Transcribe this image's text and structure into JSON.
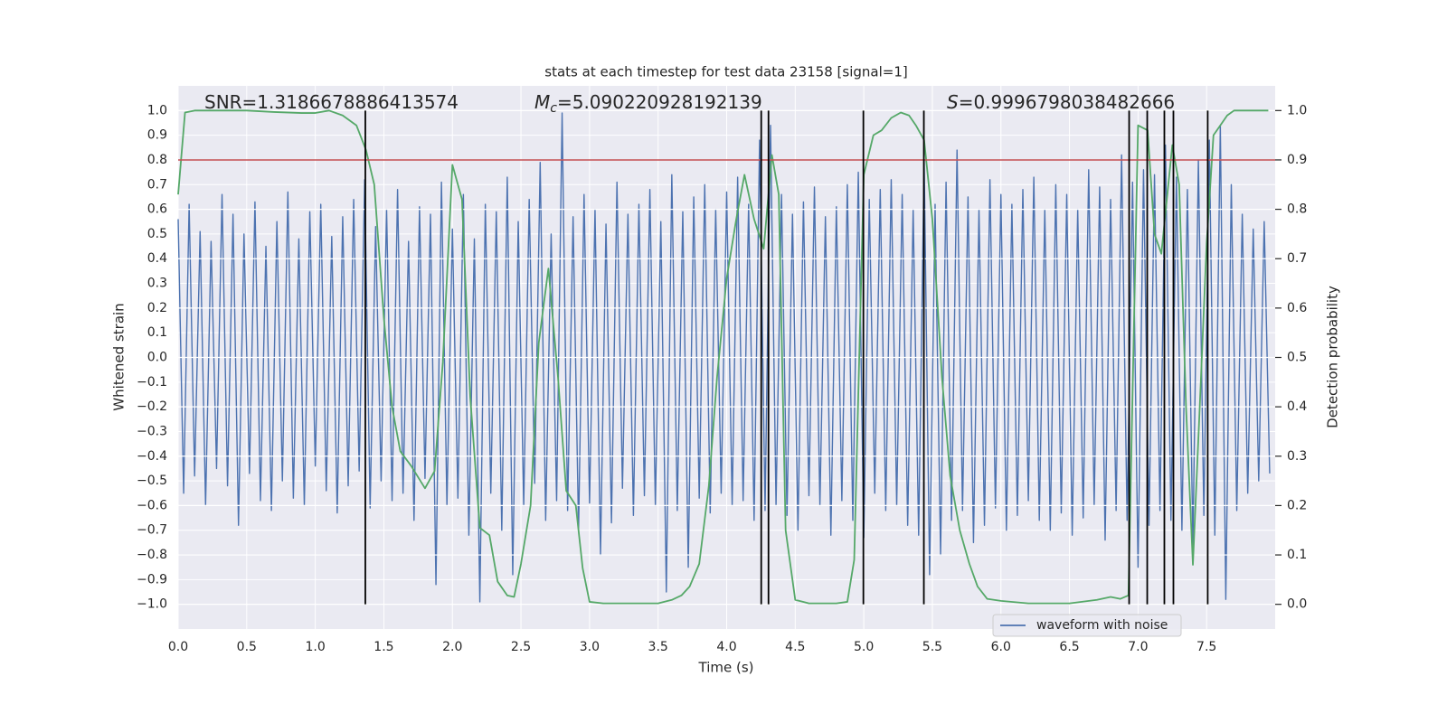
{
  "chart_data": {
    "type": "line",
    "title": "stats at each timestep for test data 23158 [signal=1]",
    "xlabel": "Time (s)",
    "ylabel": "Whitened strain",
    "y2label": "Detection probability",
    "xlim": [
      0,
      8
    ],
    "ylim": [
      -1.1,
      1.1
    ],
    "y2lim": [
      -0.05,
      1.05
    ],
    "xticks": [
      {
        "value": 0,
        "label": "0.0"
      },
      0.5,
      {
        "value": 1,
        "label": "1.0"
      },
      1.5,
      {
        "value": 2,
        "label": "2.0"
      },
      2.5,
      {
        "value": 3,
        "label": "3.0"
      },
      3.5,
      {
        "value": 4,
        "label": "4.0"
      },
      4.5,
      {
        "value": 5,
        "label": "5.0"
      },
      5.5,
      {
        "value": 6,
        "label": "6.0"
      },
      6.5,
      {
        "value": 7,
        "label": "7.0"
      },
      7.5
    ],
    "yticks": [
      {
        "value": -1,
        "label": "−1.0"
      },
      {
        "value": -0.9,
        "label": "−0.9"
      },
      {
        "value": -0.8,
        "label": "−0.8"
      },
      {
        "value": -0.7,
        "label": "−0.7"
      },
      {
        "value": -0.6,
        "label": "−0.6"
      },
      {
        "value": -0.5,
        "label": "−0.5"
      },
      {
        "value": -0.4,
        "label": "−0.4"
      },
      {
        "value": -0.3,
        "label": "−0.3"
      },
      {
        "value": -0.2,
        "label": "−0.2"
      },
      {
        "value": -0.1,
        "label": "−0.1"
      },
      {
        "value": 0,
        "label": "0.0"
      },
      0.1,
      0.2,
      0.3,
      0.4,
      0.5,
      0.6,
      0.7,
      0.8,
      0.9,
      {
        "value": 1,
        "label": "1.0"
      }
    ],
    "y2ticks": [
      {
        "value": 0,
        "label": "0.0"
      },
      0.1,
      0.2,
      0.3,
      0.4,
      0.5,
      0.6,
      0.7,
      0.8,
      0.9,
      {
        "value": 1,
        "label": "1.0"
      }
    ],
    "grid": true,
    "legend": "lower right",
    "series": [
      {
        "name": "waveform with noise",
        "color": "#4c72b0",
        "x": [
          0,
          0.04,
          0.08,
          0.12,
          0.16,
          0.2,
          0.24,
          0.28,
          0.32,
          0.36,
          0.4,
          0.44,
          0.48,
          0.52,
          0.56,
          0.6,
          0.64,
          0.68,
          0.72,
          0.76,
          0.8,
          0.84,
          0.88,
          0.92,
          0.96,
          1,
          1.04,
          1.08,
          1.12,
          1.16,
          1.2,
          1.24,
          1.28,
          1.32,
          1.36,
          1.4,
          1.44,
          1.48,
          1.52,
          1.56,
          1.6,
          1.64,
          1.68,
          1.72,
          1.76,
          1.8,
          1.84,
          1.88,
          1.92,
          1.96,
          2,
          2.04,
          2.08,
          2.12,
          2.16,
          2.2,
          2.24,
          2.28,
          2.32,
          2.36,
          2.4,
          2.44,
          2.48,
          2.52,
          2.56,
          2.6,
          2.64,
          2.68,
          2.72,
          2.76,
          2.8,
          2.84,
          2.88,
          2.92,
          2.96,
          3,
          3.04,
          3.08,
          3.12,
          3.16,
          3.2,
          3.24,
          3.28,
          3.32,
          3.36,
          3.4,
          3.44,
          3.48,
          3.52,
          3.56,
          3.6,
          3.64,
          3.68,
          3.72,
          3.76,
          3.8,
          3.84,
          3.88,
          3.92,
          3.96,
          4,
          4.04,
          4.08,
          4.12,
          4.16,
          4.2,
          4.24,
          4.28,
          4.32,
          4.36,
          4.4,
          4.44,
          4.48,
          4.52,
          4.56,
          4.6,
          4.64,
          4.68,
          4.72,
          4.76,
          4.8,
          4.84,
          4.88,
          4.92,
          4.96,
          5,
          5.04,
          5.08,
          5.12,
          5.16,
          5.2,
          5.24,
          5.28,
          5.32,
          5.36,
          5.4,
          5.44,
          5.48,
          5.52,
          5.56,
          5.6,
          5.64,
          5.68,
          5.72,
          5.76,
          5.8,
          5.84,
          5.88,
          5.92,
          5.96,
          6,
          6.04,
          6.08,
          6.12,
          6.16,
          6.2,
          6.24,
          6.28,
          6.32,
          6.36,
          6.4,
          6.44,
          6.48,
          6.52,
          6.56,
          6.6,
          6.64,
          6.68,
          6.72,
          6.76,
          6.8,
          6.84,
          6.88,
          6.92,
          6.96,
          7,
          7.04,
          7.08,
          7.12,
          7.16,
          7.2,
          7.24,
          7.28,
          7.32,
          7.36,
          7.4,
          7.44,
          7.48,
          7.52,
          7.56,
          7.6,
          7.64,
          7.68,
          7.72,
          7.76,
          7.8,
          7.84,
          7.88,
          7.92,
          7.96
        ],
        "values": [
          0.56,
          -0.55,
          0.62,
          -0.48,
          0.51,
          -0.6,
          0.47,
          -0.45,
          0.66,
          -0.52,
          0.58,
          -0.68,
          0.5,
          -0.47,
          0.63,
          -0.58,
          0.45,
          -0.62,
          0.55,
          -0.5,
          0.67,
          -0.57,
          0.48,
          -0.6,
          0.59,
          -0.44,
          0.62,
          -0.54,
          0.49,
          -0.63,
          0.57,
          -0.52,
          0.64,
          -0.46,
          0.72,
          -0.61,
          0.53,
          -0.5,
          0.6,
          -0.58,
          0.68,
          -0.55,
          0.47,
          -0.66,
          0.61,
          -0.49,
          0.58,
          -0.92,
          0.71,
          -0.6,
          0.52,
          -0.57,
          0.66,
          -0.72,
          0.48,
          -0.99,
          0.62,
          -0.55,
          0.59,
          -0.7,
          0.73,
          -0.88,
          0.55,
          -0.6,
          0.64,
          -0.51,
          0.79,
          -0.66,
          0.5,
          -0.58,
          0.99,
          -0.62,
          0.57,
          -0.7,
          0.66,
          -0.59,
          0.6,
          -0.8,
          0.54,
          -0.67,
          0.71,
          -0.53,
          0.58,
          -0.64,
          0.62,
          -0.56,
          0.68,
          -0.6,
          0.55,
          -0.95,
          0.74,
          -0.62,
          0.59,
          -0.85,
          0.65,
          -0.57,
          0.7,
          -0.63,
          0.6,
          -0.55,
          0.67,
          -0.6,
          0.73,
          -0.58,
          0.62,
          -0.66,
          0.88,
          -0.62,
          0.94,
          -0.6,
          0.66,
          -0.64,
          0.58,
          -0.7,
          0.63,
          -0.56,
          0.69,
          -0.6,
          0.57,
          -0.72,
          0.61,
          -0.58,
          0.7,
          -0.66,
          0.75,
          -0.73,
          0.64,
          -0.55,
          0.68,
          -0.62,
          0.72,
          -0.6,
          0.66,
          -0.68,
          0.6,
          -0.72,
          0.8,
          -0.88,
          0.62,
          -0.8,
          0.71,
          -0.66,
          0.84,
          -0.62,
          0.65,
          -0.75,
          0.6,
          -0.68,
          0.72,
          -0.61,
          0.66,
          -0.7,
          0.62,
          -0.64,
          0.68,
          -0.58,
          0.73,
          -0.66,
          0.6,
          -0.7,
          0.7,
          -0.63,
          0.66,
          -0.72,
          0.6,
          -0.65,
          0.76,
          -0.6,
          0.69,
          -0.74,
          0.64,
          -0.62,
          0.82,
          -0.66,
          0.71,
          -0.85,
          0.76,
          -0.68,
          0.74,
          -0.62,
          0.86,
          -0.66,
          0.73,
          -0.7,
          0.68,
          -0.76,
          0.8,
          -0.64,
          0.88,
          -0.72,
          0.94,
          -0.98,
          0.7,
          -0.62,
          0.58,
          -0.55,
          0.52,
          -0.5,
          0.55,
          -0.47
        ]
      },
      {
        "color": "#55a868",
        "axis": "y2",
        "x": [
          0,
          0.05,
          0.12,
          0.3,
          0.5,
          0.7,
          0.9,
          1.0,
          1.1,
          1.2,
          1.3,
          1.37,
          1.43,
          1.5,
          1.56,
          1.62,
          1.7,
          1.8,
          1.87,
          1.93,
          2.0,
          2.07,
          2.13,
          2.2,
          2.27,
          2.33,
          2.4,
          2.45,
          2.5,
          2.57,
          2.63,
          2.7,
          2.77,
          2.83,
          2.9,
          2.95,
          3.0,
          3.1,
          3.3,
          3.5,
          3.6,
          3.67,
          3.73,
          3.8,
          3.87,
          3.93,
          4.0,
          4.07,
          4.13,
          4.2,
          4.27,
          4.33,
          4.38,
          4.43,
          4.5,
          4.6,
          4.8,
          4.88,
          4.93,
          5.0,
          5.07,
          5.13,
          5.2,
          5.27,
          5.33,
          5.38,
          5.44,
          5.5,
          5.57,
          5.63,
          5.7,
          5.77,
          5.83,
          5.9,
          6.0,
          6.2,
          6.5,
          6.7,
          6.8,
          6.87,
          6.93,
          7.0,
          7.07,
          7.12,
          7.17,
          7.25,
          7.3,
          7.35,
          7.4,
          7.45,
          7.5,
          7.55,
          7.6,
          7.65,
          7.7,
          7.8,
          7.95
        ],
        "values": [
          0.83,
          0.996,
          1.0,
          1.0,
          1.0,
          0.997,
          0.995,
          0.995,
          1.0,
          0.99,
          0.97,
          0.92,
          0.85,
          0.58,
          0.4,
          0.31,
          0.28,
          0.235,
          0.27,
          0.49,
          0.89,
          0.82,
          0.42,
          0.155,
          0.14,
          0.046,
          0.018,
          0.015,
          0.082,
          0.2,
          0.53,
          0.68,
          0.46,
          0.23,
          0.2,
          0.073,
          0.005,
          0.002,
          0.002,
          0.002,
          0.009,
          0.018,
          0.036,
          0.082,
          0.24,
          0.46,
          0.66,
          0.78,
          0.87,
          0.78,
          0.72,
          0.91,
          0.83,
          0.15,
          0.009,
          0.002,
          0.002,
          0.005,
          0.09,
          0.87,
          0.95,
          0.96,
          0.985,
          0.996,
          0.99,
          0.97,
          0.94,
          0.78,
          0.46,
          0.26,
          0.15,
          0.082,
          0.036,
          0.011,
          0.007,
          0.002,
          0.002,
          0.009,
          0.015,
          0.011,
          0.018,
          0.97,
          0.96,
          0.75,
          0.71,
          0.93,
          0.85,
          0.4,
          0.08,
          0.4,
          0.73,
          0.95,
          0.97,
          0.99,
          1.0,
          1.0,
          1.0
        ]
      }
    ],
    "threshold": {
      "axis": "y2",
      "value": 0.9,
      "color": "#c44e52"
    },
    "vlines": {
      "x": [
        1.365,
        4.252,
        4.305,
        4.997,
        5.438,
        6.935,
        7.067,
        7.192,
        7.258,
        7.508
      ],
      "ylim": [
        -1.0,
        1.0
      ],
      "color": "#000000"
    },
    "annotations": [
      {
        "text": "SNR=1.3186678886413574"
      },
      {
        "symbol": "M",
        "subscript": "c",
        "text": "=5.090220928192139"
      },
      {
        "symbol": "S",
        "text": "=0.9996798038482666"
      }
    ]
  }
}
